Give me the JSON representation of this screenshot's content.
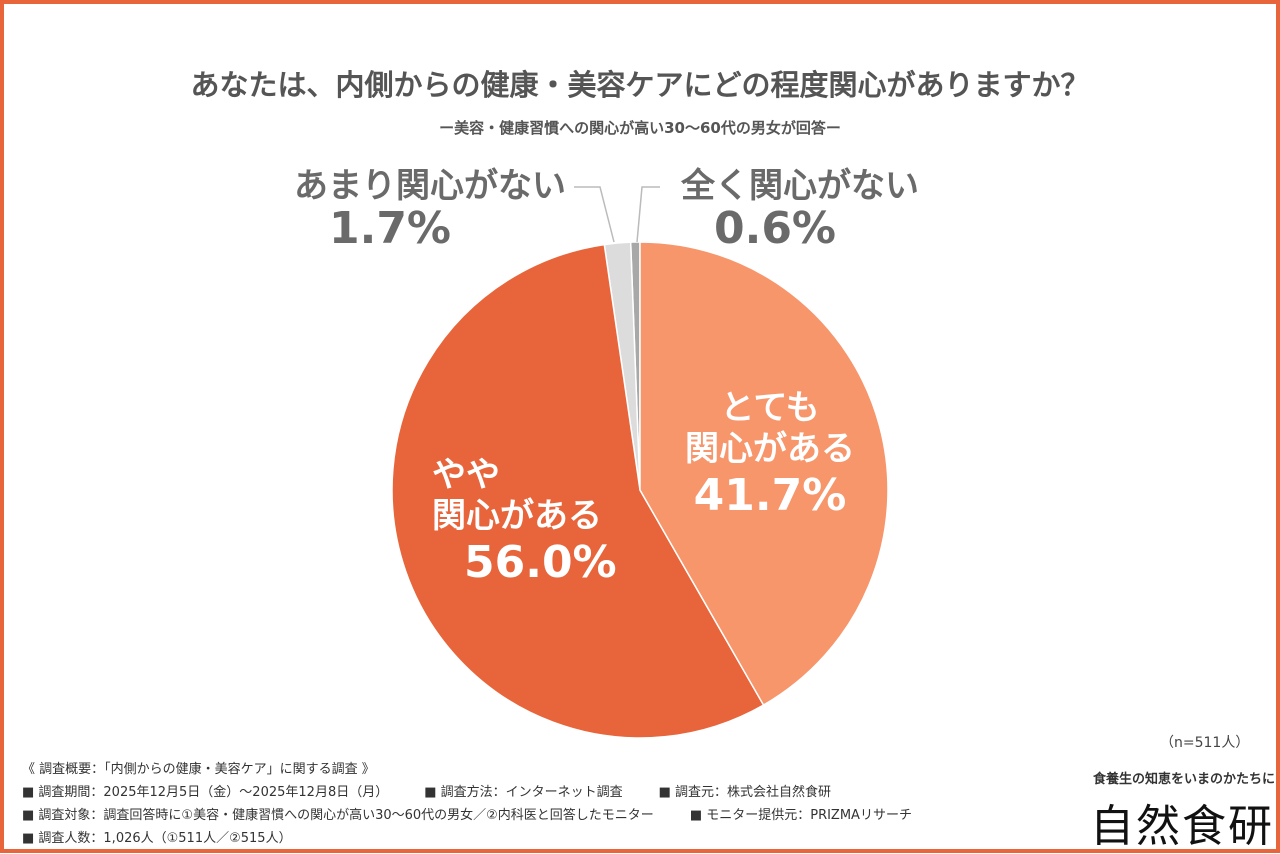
{
  "title": "あなたは、内側からの健康・美容ケアにどの程度関心がありますか？",
  "subtitle": "ー美容・健康習慣への関心が高い30〜60代の男女が回答ー",
  "chart_data": {
    "type": "pie",
    "start": "12 o'clock, clockwise",
    "slices": [
      {
        "label_lines": [
          "とても",
          "関心がある"
        ],
        "label": "とても関心がある",
        "value": 41.7,
        "pct": "41.7%",
        "color": "#F7956B"
      },
      {
        "label_lines": [
          "やや",
          "関心がある"
        ],
        "label": "やや関心がある",
        "value": 56.0,
        "pct": "56.0%",
        "color": "#E8643A"
      },
      {
        "label_lines": [
          "あまり関心がない"
        ],
        "label": "あまり関心がない",
        "value": 1.7,
        "pct": "1.7%",
        "color": "#DCDCDC"
      },
      {
        "label_lines": [
          "全く関心がない"
        ],
        "label": "全く関心がない",
        "value": 0.6,
        "pct": "0.6%",
        "color": "#A8A8A8"
      }
    ]
  },
  "sample_size": "（n=511人）",
  "footer": {
    "heading": "《 調査概要：「内側からの健康・美容ケア」に関する調査 》",
    "period": "■ 調査期間：2025年12月5日（金）〜2025年12月8日（月）",
    "method": "■ 調査方法：インターネット調査",
    "source": "■ 調査元：株式会社自然食研",
    "target": "■ 調査対象：調査回答時に①美容・健康習慣への関心が高い30〜60代の男女／②内科医と回答したモニター",
    "provider": "■ モニター提供元：PRIZMAリサーチ",
    "count": "■ 調査人数：1,026人（①511人／②515人）"
  },
  "brand": {
    "tagline": "食養生の知恵をいまのかたちに",
    "name": "自然食研"
  }
}
